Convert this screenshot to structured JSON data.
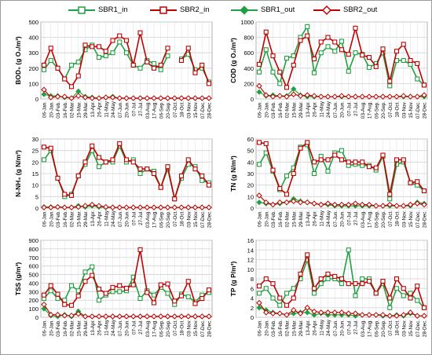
{
  "legend": {
    "series": [
      {
        "name": "SBR1_in",
        "color": "#20a040",
        "marker": "square-open"
      },
      {
        "name": "SBR2_in",
        "color": "#c00000",
        "marker": "square-open"
      },
      {
        "name": "SBR1_out",
        "color": "#20a040",
        "marker": "diamond-filled"
      },
      {
        "name": "SBR2_out",
        "color": "#c00000",
        "marker": "diamond-open"
      }
    ]
  },
  "chart_data": [
    {
      "type": "line",
      "title": "",
      "ylabel": "BOD₅ (g O₂/m³)",
      "ylim": [
        0,
        500
      ],
      "yticks": [
        "0",
        "100",
        "200",
        "300",
        "400",
        "500"
      ],
      "grid": true,
      "x": [
        "06-Jan.",
        "20-Jan.",
        "03-Feb.",
        "16-Feb.",
        "02-Mar.",
        "15-Mar.",
        "29-Mar.",
        "13-Apr.",
        "26-Apr.",
        "11-May",
        "24-May",
        "07-Jun.",
        "20-Jun.",
        "07-Jul.",
        "27-Jul.",
        "03-Aug.",
        "17-Aug.",
        "06-Sep.",
        "20-Sep.",
        "07-Oct.",
        "18-Oct.",
        "03-Nov.",
        "15-Nov.",
        "07-Dec.",
        "28-Dec."
      ],
      "series": [
        {
          "name": "SBR1_in",
          "values": [
            190,
            250,
            200,
            130,
            220,
            240,
            320,
            350,
            270,
            280,
            300,
            370,
            300,
            220,
            200,
            250,
            230,
            190,
            280,
            null,
            260,
            290,
            190,
            200,
            110
          ]
        },
        {
          "name": "SBR2_in",
          "values": [
            220,
            330,
            200,
            130,
            80,
            150,
            350,
            340,
            340,
            310,
            380,
            410,
            380,
            220,
            430,
            240,
            200,
            220,
            330,
            null,
            250,
            330,
            170,
            220,
            100
          ]
        },
        {
          "name": "SBR1_out",
          "values": [
            30,
            20,
            20,
            10,
            5,
            50,
            15,
            10,
            5,
            10,
            15,
            5,
            5,
            5,
            5,
            5,
            5,
            5,
            5,
            5,
            5,
            5,
            5,
            5,
            5
          ]
        },
        {
          "name": "SBR2_out",
          "values": [
            60,
            10,
            15,
            15,
            5,
            20,
            10,
            5,
            5,
            10,
            10,
            5,
            5,
            5,
            5,
            5,
            5,
            5,
            5,
            5,
            5,
            5,
            5,
            5,
            5
          ]
        }
      ]
    },
    {
      "type": "line",
      "title": "",
      "ylabel": "COD (g O₂/m³)",
      "ylim": [
        0,
        1000
      ],
      "yticks": [
        "0",
        "200",
        "400",
        "600",
        "800",
        "1000"
      ],
      "grid": true,
      "x": [
        "06-Jan.",
        "20-Jan.",
        "03-Feb.",
        "16-Feb.",
        "02-Mar.",
        "15-Mar.",
        "29-Mar.",
        "13-Apr.",
        "26-Apr.",
        "11-May",
        "24-May",
        "07-Jun.",
        "20-Jun.",
        "07-Jul.",
        "27-Jul.",
        "03-Aug.",
        "17-Aug.",
        "06-Sep.",
        "20-Sep.",
        "07-Oct.",
        "18-Oct.",
        "03-Nov.",
        "15-Nov.",
        "07-Dec.",
        "28-Dec."
      ],
      "series": [
        {
          "name": "SBR1_in",
          "values": [
            350,
            640,
            350,
            200,
            530,
            560,
            800,
            940,
            340,
            600,
            680,
            620,
            750,
            360,
            600,
            580,
            410,
            460,
            600,
            170,
            500,
            500,
            450,
            260,
            180
          ]
        },
        {
          "name": "SBR2_in",
          "values": [
            450,
            870,
            560,
            350,
            150,
            440,
            760,
            820,
            520,
            740,
            800,
            740,
            640,
            580,
            920,
            570,
            540,
            420,
            650,
            230,
            620,
            710,
            500,
            460,
            180
          ]
        },
        {
          "name": "SBR1_out",
          "values": [
            90,
            40,
            50,
            40,
            40,
            130,
            50,
            30,
            30,
            30,
            30,
            30,
            30,
            30,
            30,
            30,
            30,
            30,
            30,
            30,
            30,
            30,
            30,
            30,
            30
          ]
        },
        {
          "name": "SBR2_out",
          "values": [
            170,
            50,
            30,
            40,
            30,
            60,
            40,
            50,
            40,
            30,
            30,
            30,
            40,
            30,
            30,
            30,
            30,
            30,
            30,
            30,
            30,
            40,
            30,
            30,
            50
          ]
        }
      ]
    },
    {
      "type": "line",
      "title": "",
      "ylabel": "N-NH₄ (g N/m³)",
      "ylim": [
        0,
        30
      ],
      "yticks": [
        "0",
        "5",
        "10",
        "15",
        "20",
        "25",
        "30"
      ],
      "grid": true,
      "x": [
        "06-Jan.",
        "20-Jan.",
        "03-Feb.",
        "16-Feb.",
        "02-Mar.",
        "15-Mar.",
        "29-Mar.",
        "13-Apr.",
        "26-Apr.",
        "11-May",
        "24-May",
        "07-Jun.",
        "20-Jun.",
        "07-Jul.",
        "27-Jul.",
        "03-Aug.",
        "17-Aug.",
        "06-Sep.",
        "20-Sep.",
        "07-Oct.",
        "18-Oct.",
        "03-Nov.",
        "15-Nov.",
        "07-Dec.",
        "28-Dec."
      ],
      "series": [
        {
          "name": "SBR1_in",
          "values": [
            21,
            25,
            13,
            5,
            6,
            14,
            19,
            25,
            18,
            20,
            20,
            27,
            20,
            21,
            15,
            17,
            16,
            9,
            17,
            4,
            13,
            19,
            18,
            12,
            11
          ]
        },
        {
          "name": "SBR2_in",
          "values": [
            26.5,
            26,
            13,
            6,
            5.5,
            14,
            20,
            27,
            22,
            20,
            21,
            28,
            21,
            20,
            17,
            17,
            15,
            9,
            18,
            4,
            14,
            21,
            17,
            14,
            10
          ]
        },
        {
          "name": "SBR1_out",
          "values": [
            0.5,
            0.5,
            0.5,
            0.3,
            0.3,
            1,
            0.5,
            1,
            0.5,
            0.3,
            0.3,
            0.3,
            0.3,
            0.3,
            0.3,
            0.3,
            0.3,
            0.3,
            0.3,
            0.3,
            0.3,
            0.3,
            0.3,
            0.3,
            0.3
          ]
        },
        {
          "name": "SBR2_out",
          "values": [
            0.3,
            0.3,
            0.5,
            0.3,
            0.3,
            0.5,
            1,
            1.5,
            1,
            0.5,
            0.3,
            0.3,
            0.3,
            0.3,
            0.3,
            0.3,
            0.3,
            0.3,
            0.3,
            0.3,
            0.3,
            0.3,
            0.3,
            0.3,
            0.3
          ]
        }
      ]
    },
    {
      "type": "line",
      "title": "",
      "ylabel": "TN (g N/m³)",
      "ylim": [
        0,
        60
      ],
      "yticks": [
        "0",
        "10",
        "20",
        "30",
        "40",
        "50",
        "60"
      ],
      "grid": true,
      "x": [
        "06-Jan.",
        "20-Jan.",
        "03-Feb.",
        "16-Feb.",
        "02-Mar.",
        "15-Mar.",
        "29-Mar.",
        "13-Apr.",
        "26-Apr.",
        "11-May",
        "24-May",
        "07-Jun.",
        "20-Jun.",
        "07-Jul.",
        "27-Jul.",
        "03-Aug.",
        "17-Aug.",
        "06-Sep.",
        "20-Sep.",
        "07-Oct.",
        "18-Oct.",
        "03-Nov.",
        "15-Nov.",
        "07-Dec.",
        "28-Dec."
      ],
      "series": [
        {
          "name": "SBR1_in",
          "values": [
            38,
            48,
            32,
            16,
            28,
            35,
            53,
            55,
            30,
            45,
            32,
            48,
            50,
            37,
            38,
            37,
            37,
            33,
            45,
            8,
            38,
            40,
            22,
            20,
            15
          ]
        },
        {
          "name": "SBR2_in",
          "values": [
            57,
            56,
            33,
            17,
            12,
            30,
            52,
            57,
            40,
            42,
            42,
            46,
            42,
            40,
            40,
            40,
            36,
            35,
            46,
            12,
            42,
            42,
            22,
            23,
            15
          ]
        },
        {
          "name": "SBR1_out",
          "values": [
            5,
            4,
            3,
            4,
            5,
            8,
            6,
            5,
            4,
            3,
            3,
            2,
            2,
            2,
            2,
            2,
            2,
            2,
            2,
            2,
            2,
            2,
            2,
            5,
            4
          ]
        },
        {
          "name": "SBR2_out",
          "values": [
            11,
            5,
            3,
            5,
            5,
            6,
            5,
            5,
            4,
            3,
            4,
            3,
            3,
            3,
            4,
            3,
            3,
            2,
            2,
            3,
            2,
            2,
            3,
            4,
            3
          ]
        }
      ]
    },
    {
      "type": "line",
      "title": "",
      "ylabel": "TSS (g/m³)",
      "ylim": [
        0,
        900
      ],
      "yticks": [
        "0",
        "100",
        "200",
        "300",
        "400",
        "500",
        "600",
        "700",
        "800",
        "900"
      ],
      "grid": true,
      "x": [
        "06-Jan.",
        "20-Jan.",
        "03-Feb.",
        "16-Feb.",
        "02-Mar.",
        "15-Mar.",
        "29-Mar.",
        "13-Apr.",
        "26-Apr.",
        "11-May",
        "24-May",
        "07-Jun.",
        "20-Jun.",
        "07-Jul.",
        "27-Jul.",
        "03-Aug.",
        "17-Aug.",
        "06-Sep.",
        "20-Sep.",
        "07-Oct.",
        "18-Oct.",
        "03-Nov.",
        "15-Nov.",
        "07-Dec.",
        "28-Dec."
      ],
      "series": [
        {
          "name": "SBR1_in",
          "values": [
            220,
            310,
            220,
            200,
            370,
            310,
            530,
            590,
            200,
            260,
            300,
            300,
            310,
            470,
            220,
            310,
            260,
            350,
            280,
            150,
            270,
            240,
            180,
            260,
            290
          ]
        },
        {
          "name": "SBR2_in",
          "values": [
            260,
            370,
            270,
            150,
            140,
            250,
            420,
            490,
            330,
            280,
            350,
            370,
            340,
            380,
            790,
            290,
            170,
            380,
            390,
            190,
            250,
            420,
            160,
            220,
            320
          ]
        },
        {
          "name": "SBR1_out",
          "values": [
            100,
            20,
            10,
            30,
            10,
            70,
            10,
            10,
            10,
            10,
            10,
            10,
            10,
            10,
            10,
            10,
            10,
            10,
            10,
            10,
            10,
            10,
            10,
            10,
            10
          ]
        },
        {
          "name": "SBR2_out",
          "values": [
            150,
            30,
            30,
            20,
            20,
            40,
            10,
            10,
            10,
            10,
            10,
            10,
            10,
            10,
            10,
            10,
            10,
            10,
            10,
            10,
            10,
            10,
            10,
            10,
            10
          ]
        }
      ]
    },
    {
      "type": "line",
      "title": "",
      "ylabel": "TP (g P/m³)",
      "ylim": [
        0,
        16
      ],
      "yticks": [
        "0",
        "2",
        "4",
        "6",
        "8",
        "10",
        "12",
        "14",
        "16"
      ],
      "grid": true,
      "x": [
        "06-Jan.",
        "20-Jan.",
        "03-Feb.",
        "16-Feb.",
        "02-Mar.",
        "15-Mar.",
        "29-Mar.",
        "13-Apr.",
        "26-Apr.",
        "11-May",
        "24-May",
        "07-Jun.",
        "20-Jun.",
        "07-Jul.",
        "27-Jul.",
        "03-Aug.",
        "17-Aug.",
        "06-Sep.",
        "20-Sep.",
        "07-Oct.",
        "18-Oct.",
        "03-Nov.",
        "15-Nov.",
        "07-Dec.",
        "28-Dec."
      ],
      "series": [
        {
          "name": "SBR1_in",
          "values": [
            5,
            6,
            4,
            2.5,
            5,
            6,
            8,
            12,
            5,
            7,
            8,
            8,
            7,
            14,
            4.5,
            8,
            8,
            5,
            7,
            2,
            6,
            4.5,
            5,
            3.5,
            2
          ]
        },
        {
          "name": "SBR2_in",
          "values": [
            6.5,
            8,
            7,
            4,
            2.5,
            4,
            9,
            13,
            6,
            8,
            9,
            8.5,
            8,
            7,
            7,
            7,
            7.5,
            5,
            7.5,
            4,
            8,
            6,
            4,
            6.5,
            2
          ]
        },
        {
          "name": "SBR1_out",
          "values": [
            2,
            1.5,
            1,
            0.8,
            0.5,
            0.8,
            1,
            1,
            0.5,
            0.8,
            0.5,
            0.5,
            0.5,
            0.5,
            0.3,
            0.5,
            0.5,
            0.5,
            0.3,
            0.3,
            0.5,
            0.3,
            0.8,
            0.3,
            0.3
          ]
        },
        {
          "name": "SBR2_out",
          "values": [
            3,
            1,
            0.8,
            0.8,
            0.5,
            1.5,
            0.8,
            2,
            1.2,
            1,
            1,
            1,
            1,
            0.8,
            0.8,
            0.5,
            0.5,
            0.5,
            0.5,
            0.3,
            0.3,
            0.5,
            1,
            0.3,
            0.3
          ]
        }
      ]
    }
  ]
}
